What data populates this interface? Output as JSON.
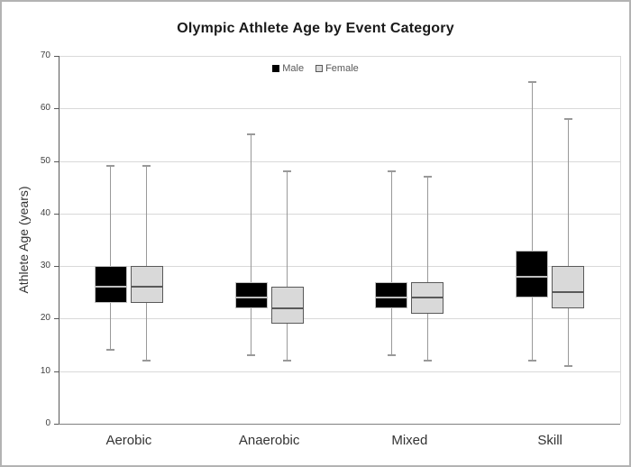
{
  "chart_data": {
    "type": "boxplot",
    "title": "Olympic Athlete Age by Event Category",
    "ylabel": "Athlete Age (years)",
    "xlabel": "",
    "ylim": [
      0,
      70
    ],
    "yticks": [
      0,
      10,
      20,
      30,
      40,
      50,
      60,
      70
    ],
    "grid": "horizontal",
    "categories": [
      "Aerobic",
      "Anaerobic",
      "Mixed",
      "Skill"
    ],
    "colors": {
      "gridline": "#d9d9d9",
      "axis": "#595959",
      "axis_bottom": "#808080",
      "whisker": "#999999",
      "tick_label": "#404040",
      "category_label": "#333333"
    },
    "legend": {
      "position": "top-center",
      "items": [
        "Male",
        "Female"
      ]
    },
    "series": [
      {
        "name": "Male",
        "fill": "#000000",
        "border": "1px solid #bfbfbf",
        "median_color": "#bfbfbf",
        "boxes": [
          {
            "category": "Aerobic",
            "min": 14,
            "q1": 23,
            "median": 26,
            "q3": 30,
            "max": 49
          },
          {
            "category": "Anaerobic",
            "min": 13,
            "q1": 22,
            "median": 24,
            "q3": 27,
            "max": 55
          },
          {
            "category": "Mixed",
            "min": 13,
            "q1": 22,
            "median": 24,
            "q3": 27,
            "max": 48
          },
          {
            "category": "Skill",
            "min": 12,
            "q1": 24,
            "median": 28,
            "q3": 33,
            "max": 65
          }
        ]
      },
      {
        "name": "Female",
        "fill": "#d9d9d9",
        "border": "1.5px solid #595959",
        "median_color": "#595959",
        "boxes": [
          {
            "category": "Aerobic",
            "min": 12,
            "q1": 23,
            "median": 26,
            "q3": 30,
            "max": 49
          },
          {
            "category": "Anaerobic",
            "min": 12,
            "q1": 19,
            "median": 22,
            "q3": 26,
            "max": 48
          },
          {
            "category": "Mixed",
            "min": 12,
            "q1": 21,
            "median": 24,
            "q3": 27,
            "max": 47
          },
          {
            "category": "Skill",
            "min": 11,
            "q1": 22,
            "median": 25,
            "q3": 30,
            "max": 58
          }
        ]
      }
    ]
  }
}
